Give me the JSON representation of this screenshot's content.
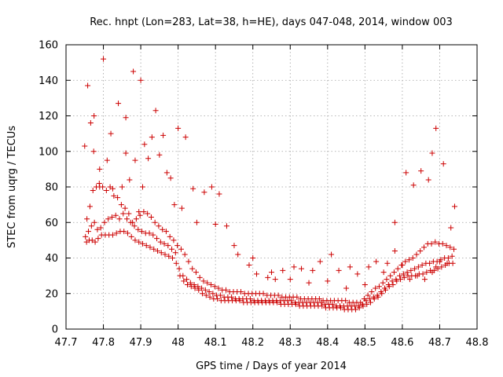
{
  "chart_data": {
    "type": "scatter",
    "title": "Rec. hnpt (Lon=283, Lat=38, h=HE), days 047-048, 2014, window 003",
    "xlabel": "GPS time / Days of year 2014",
    "ylabel": "STEC from uqrg / TECUs",
    "xlim": [
      47.7,
      48.8
    ],
    "ylim": [
      0,
      160
    ],
    "xticks": [
      "47.7",
      "47.8",
      "47.9",
      "48",
      "48.1",
      "48.2",
      "48.3",
      "48.4",
      "48.5",
      "48.6",
      "48.7",
      "48.8"
    ],
    "yticks": [
      "0",
      "20",
      "40",
      "60",
      "80",
      "100",
      "120",
      "140",
      "160"
    ],
    "grid": true,
    "marker": "plus",
    "color": "#cc0000",
    "series": [
      {
        "x": [
          47.755,
          47.762,
          47.77,
          47.778,
          47.786,
          47.795,
          47.805,
          47.815,
          47.825,
          47.835,
          47.845,
          47.855,
          47.865,
          47.875,
          47.885,
          47.895,
          47.905,
          47.915,
          47.925,
          47.935,
          47.945,
          47.955,
          47.965,
          47.975,
          47.985,
          47.995,
          48.005,
          48.015,
          48.025,
          48.035,
          48.045,
          48.055,
          48.065,
          48.075,
          48.085,
          48.095,
          48.105,
          48.115,
          48.125,
          48.135,
          48.145,
          48.155,
          48.165,
          48.175,
          48.185,
          48.195,
          48.205,
          48.215,
          48.225,
          48.235,
          48.245,
          48.255,
          48.265,
          48.275,
          48.285,
          48.295,
          48.305,
          48.315,
          48.325,
          48.335,
          48.345,
          48.355,
          48.365,
          48.375,
          48.385,
          48.395,
          48.405,
          48.415,
          48.425,
          48.435,
          48.445,
          48.455,
          48.465,
          48.475,
          48.485,
          48.495,
          48.505,
          48.515,
          48.525,
          48.535,
          48.545,
          48.555,
          48.565,
          48.575,
          48.585,
          48.595,
          48.605,
          48.615,
          48.625,
          48.635,
          48.645,
          48.655,
          48.665,
          48.675,
          48.685,
          48.695,
          48.705,
          48.715,
          48.725,
          48.735,
          47.752,
          47.76,
          47.768,
          47.776,
          47.784,
          47.793,
          47.803,
          47.813,
          47.823,
          47.833,
          47.843,
          47.853,
          47.863,
          47.873,
          47.883,
          47.893,
          47.903,
          47.913,
          47.923,
          47.933,
          47.943,
          47.953,
          47.963,
          47.973,
          47.983,
          47.993,
          48.003,
          48.013,
          48.023,
          48.033,
          48.043,
          48.053,
          48.063,
          48.073,
          48.083,
          48.093,
          48.103,
          48.113,
          48.123,
          48.133,
          48.143,
          48.153,
          48.163,
          48.173,
          48.183,
          48.193,
          48.203,
          48.213,
          48.223,
          48.233,
          48.243,
          48.253,
          48.263,
          48.273,
          48.283,
          48.293,
          48.303,
          48.313,
          48.323,
          48.333,
          48.343,
          48.353,
          48.363,
          48.373,
          48.383,
          48.393,
          48.403,
          48.413,
          48.423,
          48.433,
          48.443,
          48.453,
          48.463,
          48.473,
          48.483,
          48.493,
          48.503,
          48.513,
          48.523,
          48.533,
          48.543,
          48.553,
          48.563,
          48.573,
          48.583,
          48.593,
          48.603,
          48.613,
          48.623,
          48.633,
          48.643,
          48.653,
          48.663,
          48.673,
          48.683,
          48.693,
          48.703,
          48.713,
          48.723,
          48.733,
          47.756,
          47.764,
          47.772,
          47.781,
          47.789,
          47.798,
          47.808,
          47.818,
          47.828,
          47.838,
          47.848,
          47.858,
          47.868,
          47.878,
          47.888,
          47.898,
          47.908,
          47.918,
          47.928,
          47.938,
          47.948,
          47.958,
          47.968,
          47.978,
          47.988,
          47.998,
          48.008,
          48.018,
          48.028,
          48.038,
          48.048,
          48.058,
          48.068,
          48.078,
          48.088,
          48.098,
          48.108,
          48.118,
          48.128,
          48.138,
          48.148,
          48.158,
          48.168,
          48.178,
          48.188,
          48.198,
          48.208,
          48.218,
          48.228,
          48.238,
          48.248,
          48.258,
          48.268,
          48.278,
          48.288,
          48.298,
          48.308,
          48.318,
          48.328,
          48.338,
          48.348,
          48.358,
          48.368,
          48.378,
          48.388,
          48.398,
          48.408,
          48.418,
          48.428,
          48.438,
          48.448,
          48.458,
          48.468,
          48.478,
          48.488,
          48.498,
          48.508,
          48.518,
          48.528,
          48.538,
          48.548,
          48.558,
          48.568,
          48.578,
          48.588,
          48.598,
          48.608,
          48.618,
          48.628,
          48.638,
          48.648,
          48.658,
          48.668,
          48.678,
          48.688,
          48.698,
          48.708,
          48.718,
          48.728,
          48.738,
          47.758,
          47.766,
          47.774,
          47.79,
          47.8,
          47.82,
          47.84,
          47.86,
          47.86,
          47.88,
          47.9,
          47.91,
          47.93,
          47.95,
          47.97,
          47.98,
          48.0,
          48.02,
          48.04,
          48.07,
          48.09,
          48.11,
          48.13,
          48.16,
          48.19,
          48.21,
          48.24,
          48.26,
          48.28,
          48.31,
          48.33,
          48.36,
          48.38,
          48.41,
          48.43,
          48.46,
          48.48,
          48.51,
          48.53,
          48.56,
          48.58,
          48.6,
          48.62,
          48.64,
          48.66,
          48.68,
          48.69,
          48.7,
          48.72,
          48.74,
          47.75,
          47.775,
          47.79,
          47.81,
          47.825,
          47.85,
          47.87,
          47.885,
          47.895,
          47.905,
          47.92,
          47.94,
          47.96,
          47.99,
          48.01,
          48.05,
          48.1,
          48.15,
          48.2,
          48.25,
          48.3,
          48.35,
          48.4,
          48.45,
          48.5,
          48.55,
          48.58,
          48.61,
          48.63,
          48.65,
          48.67,
          48.68,
          48.69,
          48.71,
          48.73
        ],
        "y": [
          49,
          50,
          50,
          49,
          51,
          53,
          53,
          53,
          53,
          54,
          55,
          55,
          54,
          52,
          50,
          49,
          48,
          47,
          46,
          45,
          44,
          43,
          42,
          41,
          40,
          37,
          30,
          27,
          25,
          24,
          23,
          22,
          20,
          19,
          18,
          17,
          17,
          16,
          16,
          16,
          16,
          16,
          16,
          15,
          15,
          15,
          15,
          15,
          15,
          15,
          15,
          15,
          15,
          14,
          14,
          14,
          14,
          14,
          13,
          13,
          13,
          13,
          13,
          13,
          13,
          12,
          12,
          12,
          12,
          12,
          11,
          11,
          11,
          11,
          12,
          13,
          14,
          15,
          17,
          18,
          20,
          22,
          24,
          25,
          27,
          28,
          29,
          30,
          30,
          30,
          31,
          31,
          32,
          33,
          33,
          34,
          35,
          36,
          37,
          37,
          52,
          55,
          58,
          60,
          56,
          57,
          60,
          62,
          63,
          64,
          62,
          65,
          62,
          60,
          58,
          56,
          55,
          54,
          54,
          53,
          51,
          49,
          48,
          47,
          45,
          43,
          34,
          30,
          28,
          26,
          25,
          24,
          23,
          22,
          21,
          20,
          19,
          19,
          18,
          18,
          18,
          17,
          17,
          17,
          17,
          17,
          16,
          16,
          16,
          16,
          16,
          16,
          16,
          16,
          16,
          16,
          16,
          15,
          15,
          15,
          15,
          15,
          15,
          15,
          15,
          14,
          14,
          14,
          13,
          13,
          13,
          13,
          13,
          13,
          13,
          14,
          16,
          17,
          18,
          19,
          21,
          23,
          25,
          27,
          28,
          30,
          31,
          32,
          33,
          34,
          35,
          36,
          37,
          37,
          38,
          38,
          39,
          40,
          40,
          41,
          62,
          69,
          78,
          80,
          82,
          80,
          78,
          80,
          75,
          74,
          70,
          68,
          65,
          60,
          62,
          64,
          66,
          65,
          63,
          60,
          58,
          56,
          55,
          52,
          50,
          47,
          45,
          42,
          38,
          34,
          32,
          29,
          27,
          26,
          25,
          24,
          23,
          22,
          22,
          21,
          21,
          21,
          21,
          20,
          20,
          20,
          20,
          20,
          20,
          19,
          19,
          19,
          19,
          18,
          18,
          18,
          18,
          18,
          17,
          17,
          17,
          17,
          17,
          17,
          16,
          16,
          16,
          16,
          16,
          16,
          16,
          15,
          15,
          15,
          15,
          17,
          19,
          21,
          23,
          24,
          26,
          28,
          30,
          32,
          34,
          36,
          38,
          39,
          40,
          42,
          44,
          46,
          48,
          48,
          49,
          48,
          48,
          47,
          46,
          45,
          137,
          116,
          100,
          90,
          152,
          110,
          127,
          99,
          119,
          145,
          140,
          104,
          108,
          98,
          88,
          85,
          113,
          108,
          79,
          77,
          80,
          76,
          58,
          42,
          36,
          31,
          29,
          28,
          33,
          35,
          34,
          33,
          38,
          42,
          33,
          35,
          31,
          35,
          38,
          37,
          44,
          36,
          28,
          30,
          28,
          32,
          35,
          38,
          37,
          69,
          103,
          120,
          80,
          95,
          79,
          80,
          84,
          95,
          66,
          80,
          96,
          123,
          109,
          70,
          68,
          60,
          59,
          47,
          40,
          32,
          28,
          26,
          27,
          23,
          25,
          32,
          60,
          88,
          81,
          89,
          84,
          99,
          113,
          93,
          57
        ]
      }
    ]
  }
}
